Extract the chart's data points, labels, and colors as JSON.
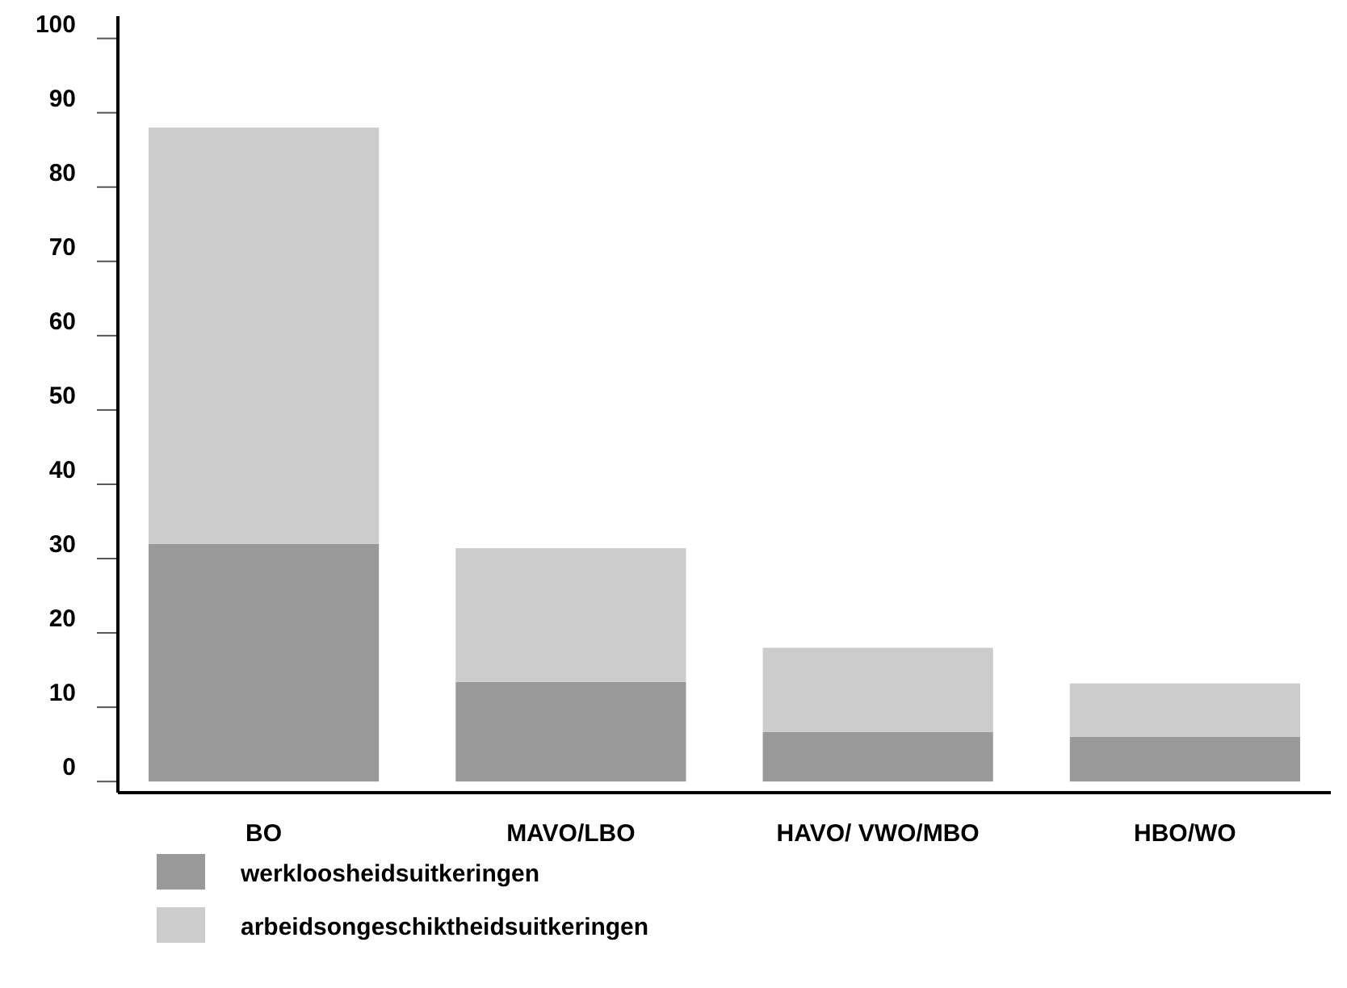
{
  "chart_data": {
    "type": "bar",
    "stacked": true,
    "categories": [
      "BO",
      "MAVO/LBO",
      "HAVO/ VWO/MBO",
      "HBO/WO"
    ],
    "series": [
      {
        "name": "werkloosheidsuitkeringen",
        "color": "#999999",
        "values": [
          32,
          13.4,
          6.7,
          6
        ]
      },
      {
        "name": "arbeidsongeschiktheidsuitkeringen",
        "color": "#cccccc",
        "values": [
          56,
          18,
          11.3,
          7.2
        ]
      }
    ],
    "ylim": [
      -1.5,
      103
    ],
    "yticks": [
      0,
      10,
      20,
      30,
      40,
      50,
      60,
      70,
      80,
      90,
      100
    ],
    "grid": false,
    "legend": "bottom left"
  }
}
